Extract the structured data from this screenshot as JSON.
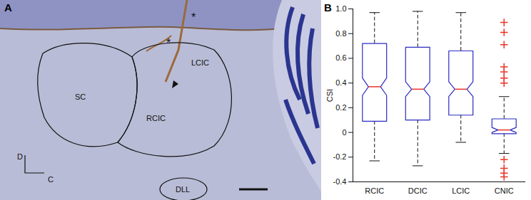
{
  "chart_data": {
    "type": "box",
    "y_label": "CSI",
    "categories": [
      "RCIC",
      "DCIC",
      "LCIC",
      "CNIC"
    ],
    "whisker_low": [
      -0.23,
      -0.27,
      -0.08,
      -0.17
    ],
    "q1": [
      0.09,
      0.1,
      0.14,
      -0.01
    ],
    "median": [
      0.37,
      0.35,
      0.35,
      0.02
    ],
    "q3": [
      0.72,
      0.69,
      0.66,
      0.11
    ],
    "whisker_high": [
      0.97,
      0.98,
      0.97,
      0.29
    ],
    "notch_low": [
      0.3,
      0.29,
      0.29,
      0.0
    ],
    "notch_high": [
      0.44,
      0.41,
      0.41,
      0.04
    ],
    "outliers": [
      [],
      [],
      [],
      [
        0.89,
        0.81,
        0.71,
        0.53,
        0.49,
        0.44,
        0.4,
        -0.22,
        -0.29,
        -0.33,
        -0.36
      ]
    ],
    "color": "#2b2bc4",
    "marker": "plus",
    "line_style": "dashed",
    "ylim": [
      -0.4,
      1
    ],
    "yticks": [
      -0.4,
      -0.2,
      0,
      0.2,
      0.4,
      0.6,
      0.8,
      {
        "value": 1,
        "label": "1.0"
      }
    ]
  },
  "figure": {
    "panel_labels": [
      "A",
      "B"
    ],
    "image_labels": [
      "SC",
      "RCIC",
      "LCIC",
      "DLL",
      "D",
      "C",
      "*",
      "*"
    ]
  }
}
